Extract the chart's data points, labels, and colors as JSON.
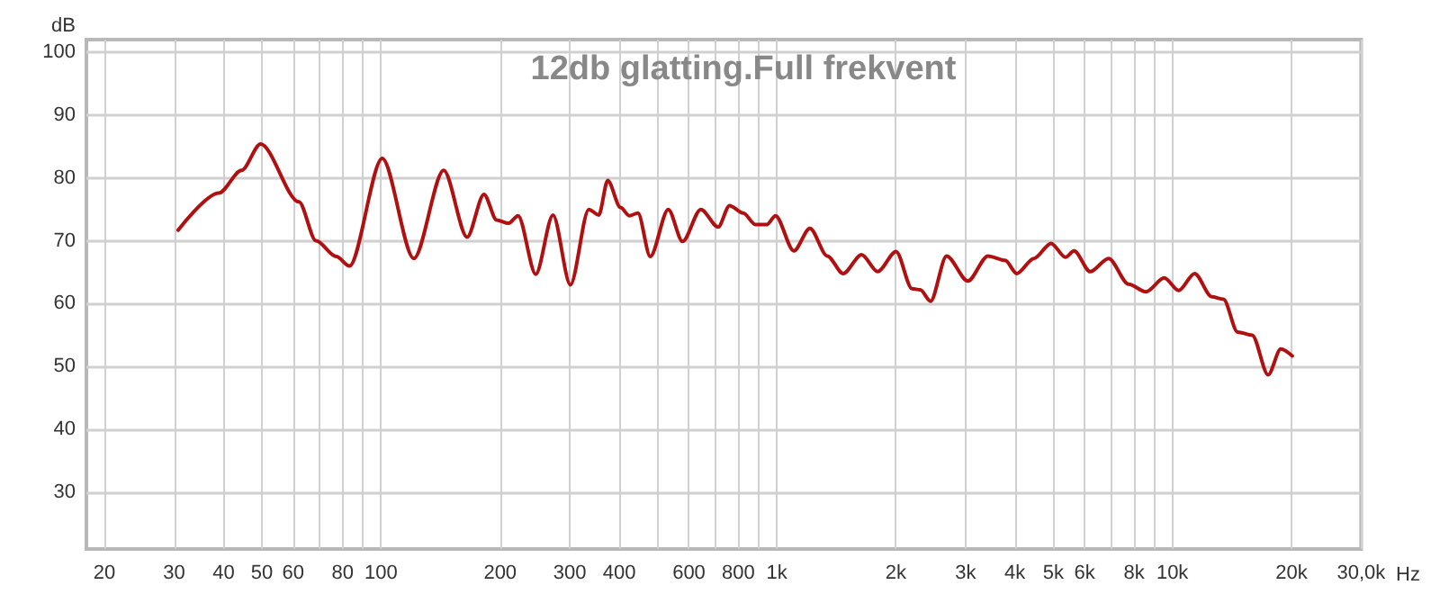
{
  "chart_data": {
    "type": "line",
    "title": "12db glatting.Full frekvent",
    "xlabel": "Hz",
    "ylabel": "dB",
    "log": "x",
    "grid": true,
    "marker": "none",
    "line_style": "solid",
    "xlim": [
      18,
      30000
    ],
    "ylim": [
      21,
      102
    ],
    "xticks": [
      20,
      30,
      40,
      50,
      60,
      {
        "value": 70,
        "label": null
      },
      80,
      {
        "value": 90,
        "label": null
      },
      100,
      200,
      300,
      400,
      {
        "value": 500,
        "label": null
      },
      600,
      {
        "value": 700,
        "label": null
      },
      800,
      {
        "value": 900,
        "label": null
      },
      {
        "value": 1000,
        "label": "1k"
      },
      {
        "value": 2000,
        "label": "2k"
      },
      {
        "value": 3000,
        "label": "3k"
      },
      {
        "value": 4000,
        "label": "4k"
      },
      {
        "value": 5000,
        "label": "5k"
      },
      {
        "value": 6000,
        "label": "6k"
      },
      {
        "value": 7000,
        "label": null
      },
      {
        "value": 8000,
        "label": "8k"
      },
      {
        "value": 9000,
        "label": null
      },
      {
        "value": 10000,
        "label": "10k"
      },
      {
        "value": 20000,
        "label": "20k"
      },
      {
        "value": 30000,
        "label": "30,0k"
      }
    ],
    "yticks": [
      30,
      40,
      50,
      60,
      70,
      80,
      90,
      100
    ],
    "x": [
      30.7,
      38.9,
      44.4,
      49.6,
      62,
      68.5,
      77.1,
      83.2,
      100.7,
      121,
      144,
      165,
      182,
      196,
      210,
      222,
      246,
      272,
      301,
      335,
      355,
      374,
      403,
      424,
      446,
      479,
      532,
      578,
      643,
      711,
      760,
      823,
      883,
      944,
      993,
      1105,
      1213,
      1342,
      1472,
      1639,
      1799,
      2003,
      2198,
      2305,
      2448,
      2687,
      3041,
      3420,
      3779,
      4042,
      4467,
      4937,
      5367,
      5643,
      6199,
      6897,
      7756,
      8570,
      9541,
      10370,
      11380,
      12580,
      13460,
      14620,
      15910,
      17460,
      18790,
      20090
    ],
    "series": [
      {
        "color": "#b01010",
        "values": [
          71.7,
          77.6,
          81.2,
          85.4,
          76.2,
          70,
          67.5,
          66,
          83.1,
          67.2,
          81.2,
          70.6,
          77.4,
          73.3,
          72.8,
          74,
          64.7,
          74.1,
          63,
          75,
          74.1,
          79.6,
          75.3,
          74,
          74.4,
          67.5,
          75,
          69.9,
          75,
          72.2,
          75.6,
          74.4,
          72.6,
          72.6,
          74,
          68.4,
          72,
          67.6,
          64.8,
          67.8,
          65.1,
          68.3,
          62.4,
          62.2,
          60.4,
          67.6,
          63.6,
          67.6,
          66.9,
          64.8,
          67.2,
          69.6,
          67.4,
          68.4,
          65.1,
          67.2,
          63.1,
          61.9,
          64.1,
          62.1,
          64.8,
          61.1,
          60.7,
          55.5,
          55,
          48.7,
          52.8,
          51.7
        ]
      }
    ]
  }
}
